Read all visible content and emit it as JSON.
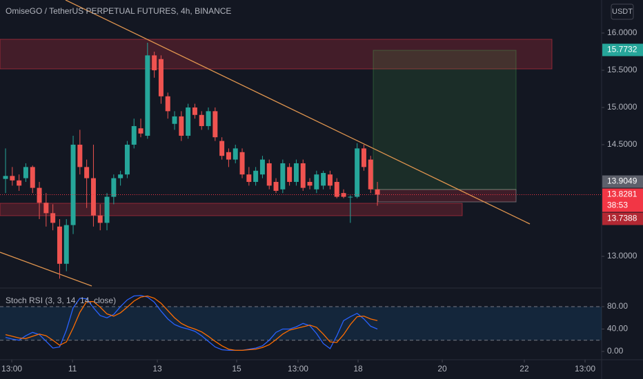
{
  "chart_data": [
    {
      "type": "candlestick",
      "title": "OmiseGO / TetherUS PERPETUAL FUTURES, 4h, BINANCE",
      "currency": "USDT",
      "up_color": "#26a69a",
      "down_color": "#ef5350",
      "xlim": [
        -0.82,
        88.16
      ],
      "ylim": [
        12.574,
        16.444
      ],
      "yticks": [
        {
          "value": 13,
          "label": "13.0000"
        },
        {
          "value": 14.5,
          "label": "14.5000"
        },
        {
          "value": 15,
          "label": "15.0000"
        },
        {
          "value": 15.5,
          "label": "15.5000"
        },
        {
          "value": 16,
          "label": "16.0000"
        }
      ],
      "ohlc": [
        [
          14.04,
          14.45,
          13.85,
          14.08
        ],
        [
          14.08,
          14.2,
          13.95,
          14.02
        ],
        [
          14.02,
          14.1,
          13.88,
          13.95
        ],
        [
          14.05,
          14.25,
          14.0,
          14.2
        ],
        [
          14.2,
          14.22,
          13.85,
          13.92
        ],
        [
          13.92,
          14.0,
          13.5,
          13.72
        ],
        [
          13.72,
          13.85,
          13.4,
          13.58
        ],
        [
          13.58,
          13.7,
          13.35,
          13.45
        ],
        [
          13.4,
          13.5,
          12.7,
          12.9
        ],
        [
          12.9,
          13.5,
          12.8,
          13.42
        ],
        [
          13.42,
          14.62,
          13.3,
          14.5
        ],
        [
          14.5,
          14.7,
          14.1,
          14.2
        ],
        [
          14.2,
          14.3,
          13.65,
          14.05
        ],
        [
          14.05,
          14.5,
          13.4,
          13.55
        ],
        [
          13.55,
          13.7,
          13.35,
          13.45
        ],
        [
          13.45,
          13.85,
          13.35,
          13.8
        ],
        [
          13.8,
          14.1,
          13.7,
          14.05
        ],
        [
          14.05,
          14.15,
          13.95,
          14.1
        ],
        [
          14.1,
          14.55,
          14.05,
          14.5
        ],
        [
          14.5,
          14.85,
          14.45,
          14.75
        ],
        [
          14.72,
          14.85,
          14.6,
          14.65
        ],
        [
          14.62,
          15.87,
          14.58,
          15.7
        ],
        [
          15.7,
          15.75,
          15.4,
          15.5
        ],
        [
          15.65,
          15.7,
          15.05,
          15.15
        ],
        [
          15.15,
          15.2,
          14.85,
          14.95
        ],
        [
          14.78,
          14.95,
          14.7,
          14.88
        ],
        [
          14.88,
          14.95,
          14.55,
          14.62
        ],
        [
          14.62,
          15.05,
          14.58,
          15.0
        ],
        [
          15.0,
          15.05,
          14.85,
          14.9
        ],
        [
          14.9,
          14.95,
          14.7,
          14.75
        ],
        [
          14.75,
          15.0,
          14.7,
          14.95
        ],
        [
          14.95,
          15.0,
          14.55,
          14.6
        ],
        [
          14.55,
          14.6,
          14.3,
          14.35
        ],
        [
          14.4,
          14.45,
          14.2,
          14.3
        ],
        [
          14.3,
          14.5,
          14.25,
          14.45
        ],
        [
          14.4,
          14.45,
          14.05,
          14.1
        ],
        [
          14.1,
          14.2,
          13.95,
          14.0
        ],
        [
          14.0,
          14.2,
          13.95,
          14.15
        ],
        [
          14.1,
          14.35,
          14.05,
          14.3
        ],
        [
          14.25,
          14.3,
          13.9,
          13.95
        ],
        [
          14.0,
          14.05,
          13.85,
          13.88
        ],
        [
          13.9,
          14.3,
          13.85,
          14.25
        ],
        [
          14.2,
          14.25,
          13.95,
          14.0
        ],
        [
          14.0,
          14.3,
          13.95,
          14.25
        ],
        [
          14.25,
          14.3,
          13.88,
          13.92
        ],
        [
          14.0,
          14.05,
          13.9,
          13.95
        ],
        [
          13.9,
          14.15,
          13.85,
          14.1
        ],
        [
          13.95,
          14.15,
          13.9,
          14.12
        ],
        [
          14.1,
          14.15,
          13.9,
          13.95
        ],
        [
          14.0,
          14.05,
          13.78,
          13.8
        ],
        [
          13.85,
          13.9,
          13.78,
          13.8
        ],
        [
          13.8,
          13.82,
          13.45,
          13.8
        ],
        [
          13.8,
          14.52,
          13.78,
          14.45
        ],
        [
          14.45,
          14.5,
          14.15,
          14.2
        ],
        [
          14.3,
          14.35,
          13.85,
          13.9
        ],
        [
          13.9,
          14.0,
          13.68,
          13.83
        ]
      ],
      "price_markers": [
        {
          "value": 15.7732,
          "color": "#26a69a"
        },
        {
          "value": 13.9049,
          "color": "#5d606b"
        },
        {
          "value": 13.8281,
          "color": "#f23645",
          "countdown": "38:53"
        },
        {
          "value": 13.7388,
          "color": "#b22833"
        }
      ]
    },
    {
      "type": "line",
      "title": "Stoch RSI (3, 3, 14, 14, close)",
      "xlim": [
        -0.82,
        88.16
      ],
      "ylim": [
        -14.8,
        113.2
      ],
      "yticks": [
        {
          "value": 0,
          "label": "0.00"
        },
        {
          "value": 40,
          "label": "40.00"
        },
        {
          "value": 80,
          "label": "80.00"
        }
      ],
      "band": [
        20,
        80
      ],
      "xticks": [
        {
          "value": 0.92,
          "label": "13:00"
        },
        {
          "value": 9.9,
          "label": "11"
        },
        {
          "value": 22.45,
          "label": "13"
        },
        {
          "value": 34.18,
          "label": "15"
        },
        {
          "value": 43.26,
          "label": "13:00"
        },
        {
          "value": 52.14,
          "label": "18"
        },
        {
          "value": 64.59,
          "label": "20"
        },
        {
          "value": 76.73,
          "label": "22"
        },
        {
          "value": 85.71,
          "label": "13:00"
        }
      ],
      "series": [
        {
          "color": "#2962ff",
          "values": [
            25,
            22,
            20,
            28,
            34,
            30,
            18,
            6,
            8,
            38,
            78,
            95,
            94,
            78,
            64,
            60,
            66,
            80,
            92,
            99,
            100,
            97,
            88,
            72,
            58,
            48,
            43,
            40,
            36,
            28,
            18,
            8,
            3,
            2,
            2,
            2,
            4,
            6,
            10,
            20,
            34,
            40,
            40,
            44,
            50,
            46,
            32,
            14,
            5,
            28,
            55,
            62,
            68,
            58,
            45,
            40
          ]
        },
        {
          "color": "#ff6d00",
          "values": [
            30,
            27,
            24,
            23,
            27,
            31,
            28,
            20,
            11,
            17,
            42,
            70,
            89,
            89,
            79,
            67,
            63,
            69,
            79,
            90,
            97,
            99,
            95,
            86,
            73,
            60,
            50,
            44,
            40,
            35,
            27,
            18,
            10,
            4,
            2,
            2,
            3,
            4,
            7,
            12,
            21,
            31,
            38,
            41,
            44,
            47,
            43,
            31,
            17,
            16,
            30,
            48,
            62,
            63,
            58,
            55
          ]
        }
      ]
    }
  ]
}
